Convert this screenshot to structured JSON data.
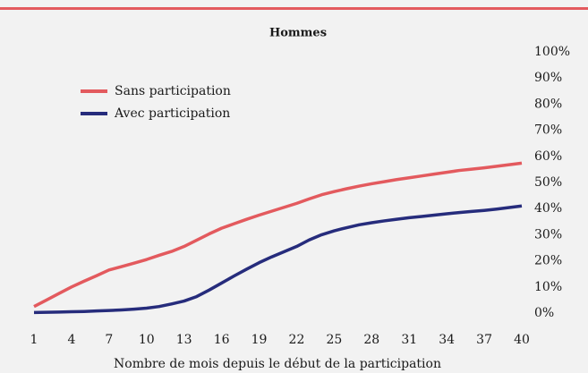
{
  "chart_data": {
    "type": "line",
    "title": "Hommes",
    "x_label": "Nombre de mois depuis le début de la participation",
    "x": [
      1,
      2,
      3,
      4,
      5,
      6,
      7,
      8,
      9,
      10,
      11,
      12,
      13,
      14,
      15,
      16,
      17,
      18,
      19,
      20,
      21,
      22,
      23,
      24,
      25,
      26,
      27,
      28,
      29,
      30,
      31,
      32,
      33,
      34,
      35,
      36,
      37,
      38,
      39,
      40
    ],
    "xlim": [
      1,
      40
    ],
    "xticks": [
      1,
      4,
      7,
      10,
      13,
      16,
      19,
      22,
      25,
      28,
      31,
      34,
      37,
      40
    ],
    "ylim": [
      0,
      100
    ],
    "yticks": [
      {
        "value": 0,
        "label": "0%"
      },
      {
        "value": 10,
        "label": "10%"
      },
      {
        "value": 20,
        "label": "20%"
      },
      {
        "value": 30,
        "label": "30%"
      },
      {
        "value": 40,
        "label": "40%"
      },
      {
        "value": 50,
        "label": "50%"
      },
      {
        "value": 60,
        "label": "60%"
      },
      {
        "value": 70,
        "label": "70%"
      },
      {
        "value": 80,
        "label": "80%"
      },
      {
        "value": 90,
        "label": "90%"
      },
      {
        "value": 100,
        "label": "100%"
      }
    ],
    "legend": "upper left",
    "grid": false,
    "series": [
      {
        "name": "Sans participation",
        "color": "#e35a5e",
        "values": [
          2.5,
          5,
          7.5,
          10,
          12.2,
          14.3,
          16.5,
          17.8,
          19.1,
          20.5,
          22.1,
          23.6,
          25.5,
          27.9,
          30.3,
          32.5,
          34.2,
          35.9,
          37.5,
          39,
          40.5,
          42,
          43.7,
          45.3,
          46.5,
          47.6,
          48.6,
          49.5,
          50.3,
          51.1,
          51.8,
          52.5,
          53.2,
          53.9,
          54.6,
          55.1,
          55.6,
          56.2,
          56.8,
          57.4
        ]
      },
      {
        "name": "Avec participation",
        "color": "#262c7c",
        "values": [
          0.2,
          0.3,
          0.4,
          0.5,
          0.6,
          0.8,
          1.0,
          1.2,
          1.5,
          1.9,
          2.5,
          3.5,
          4.6,
          6.3,
          8.8,
          11.5,
          14.2,
          16.8,
          19.3,
          21.5,
          23.5,
          25.5,
          28,
          30,
          31.5,
          32.7,
          33.8,
          34.6,
          35.3,
          35.9,
          36.5,
          37,
          37.5,
          38,
          38.5,
          38.9,
          39.3,
          39.8,
          40.4,
          41
        ]
      }
    ]
  }
}
